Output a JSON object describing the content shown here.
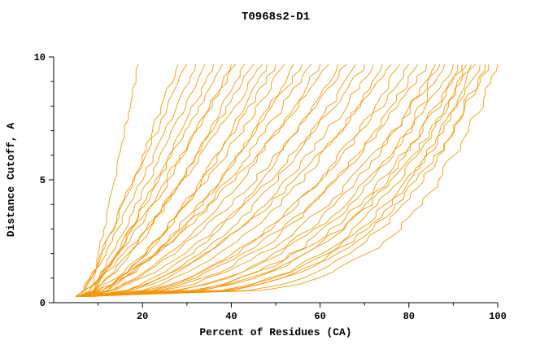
{
  "page": {
    "background": "#ffffff"
  },
  "chart_data": {
    "type": "line",
    "title": "T0968s2-D1",
    "xlabel": "Percent of Residues (CA)",
    "ylabel": "Distance Cutoff, A",
    "xlim": [
      0,
      100
    ],
    "ylim": [
      0,
      10
    ],
    "xticks": {
      "major": [
        20,
        40,
        60,
        80,
        100
      ],
      "minor_step": 10
    },
    "yticks": {
      "major": [
        0,
        5,
        10
      ],
      "minor_step": 1
    },
    "grid": false,
    "legend": false,
    "line_color": "#f59300",
    "axis_color": "#000000",
    "curve_y_start": 0.25,
    "curve_y_end": 9.7,
    "curve_columns": [
      "start_percent",
      "percent_at_cutoff_10",
      "shape_exponent"
    ],
    "curves": [
      [
        8,
        19,
        1.0
      ],
      [
        6,
        28,
        0.9
      ],
      [
        7,
        30,
        1.05
      ],
      [
        5,
        32,
        0.85
      ],
      [
        8,
        34,
        0.95
      ],
      [
        6,
        36,
        0.8
      ],
      [
        9,
        38,
        1.0
      ],
      [
        5,
        40,
        0.75
      ],
      [
        7,
        41,
        0.9
      ],
      [
        6,
        43,
        0.7
      ],
      [
        8,
        45,
        0.85
      ],
      [
        5,
        47,
        0.8
      ],
      [
        7,
        48,
        0.65
      ],
      [
        9,
        50,
        0.75
      ],
      [
        6,
        52,
        0.7
      ],
      [
        5,
        54,
        0.6
      ],
      [
        8,
        56,
        0.72
      ],
      [
        6,
        58,
        0.65
      ],
      [
        7,
        60,
        0.6
      ],
      [
        5,
        62,
        0.68
      ],
      [
        9,
        64,
        0.55
      ],
      [
        6,
        66,
        0.62
      ],
      [
        7,
        68,
        0.5
      ],
      [
        5,
        70,
        0.58
      ],
      [
        8,
        72,
        0.52
      ],
      [
        6,
        74,
        0.45
      ],
      [
        7,
        76,
        0.55
      ],
      [
        5,
        78,
        0.42
      ],
      [
        9,
        80,
        0.48
      ],
      [
        6,
        82,
        0.4
      ],
      [
        7,
        84,
        0.45
      ],
      [
        5,
        86,
        0.35
      ],
      [
        8,
        87,
        0.42
      ],
      [
        6,
        88,
        0.32
      ],
      [
        7,
        90,
        0.38
      ],
      [
        5,
        91,
        0.3
      ],
      [
        8,
        92,
        0.35
      ],
      [
        6,
        93,
        0.28
      ],
      [
        7,
        94,
        0.33
      ],
      [
        5,
        95,
        0.26
      ],
      [
        8,
        96,
        0.3
      ],
      [
        6,
        97,
        0.24
      ],
      [
        7,
        98,
        0.28
      ],
      [
        5,
        100,
        0.22
      ]
    ]
  }
}
